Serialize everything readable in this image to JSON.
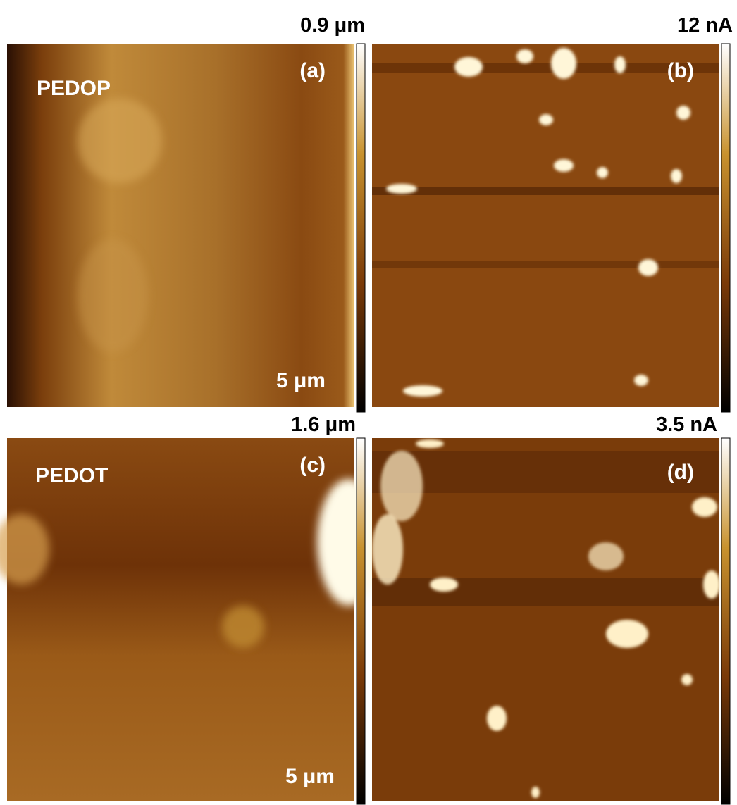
{
  "panels": [
    {
      "label": "(a)",
      "sample": "PEDOP",
      "scale_max": "0.9 μm",
      "scale_bar": "5 μm"
    },
    {
      "label": "(b)",
      "scale_max": "12 nA"
    },
    {
      "label": "(c)",
      "sample": "PEDOT",
      "scale_max": "1.6 μm",
      "scale_bar": "5 μm"
    },
    {
      "label": "(d)",
      "scale_max": "3.5 nA"
    }
  ]
}
